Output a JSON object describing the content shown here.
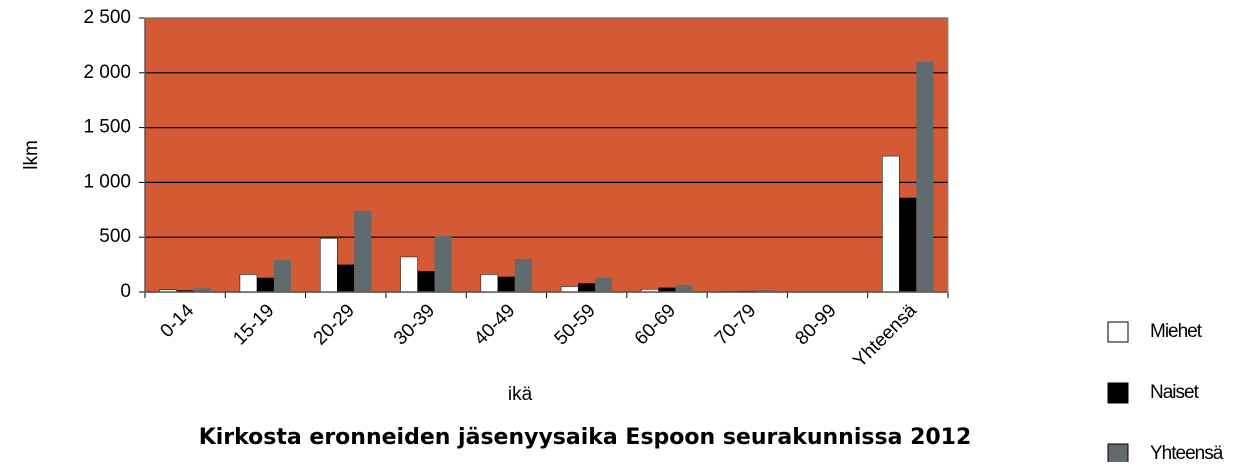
{
  "chart_data": {
    "type": "bar",
    "title": "Kirkosta eronneiden jäsenyysaika Espoon seurakunnissa 2012",
    "x_label": "ikä",
    "y_label": "lkm",
    "categories": [
      "0-14",
      "15-19",
      "20-29",
      "30-39",
      "40-49",
      "50-59",
      "60-69",
      "70-79",
      "80-99",
      "Yhteensä"
    ],
    "series": [
      {
        "name": "Miehet",
        "color": "#ffffff",
        "values": [
          20,
          160,
          490,
          320,
          160,
          50,
          25,
          5,
          0,
          1240
        ]
      },
      {
        "name": "Naiset",
        "color": "#000000",
        "values": [
          15,
          130,
          250,
          190,
          140,
          80,
          40,
          10,
          0,
          860
        ]
      },
      {
        "name": "Yhteensä",
        "color": "#5f6b6d",
        "values": [
          35,
          290,
          740,
          510,
          300,
          130,
          65,
          15,
          0,
          2100
        ]
      }
    ],
    "ylim": [
      0,
      2500
    ],
    "yticks": [
      0,
      500,
      {
        "value": 1000,
        "label": "1 000"
      },
      {
        "value": 1500,
        "label": "1 500"
      },
      {
        "value": 2000,
        "label": "2 000"
      },
      {
        "value": 2500,
        "label": "2 500"
      }
    ],
    "grid": true,
    "plot_background": "#d45a36",
    "legend": "right"
  }
}
